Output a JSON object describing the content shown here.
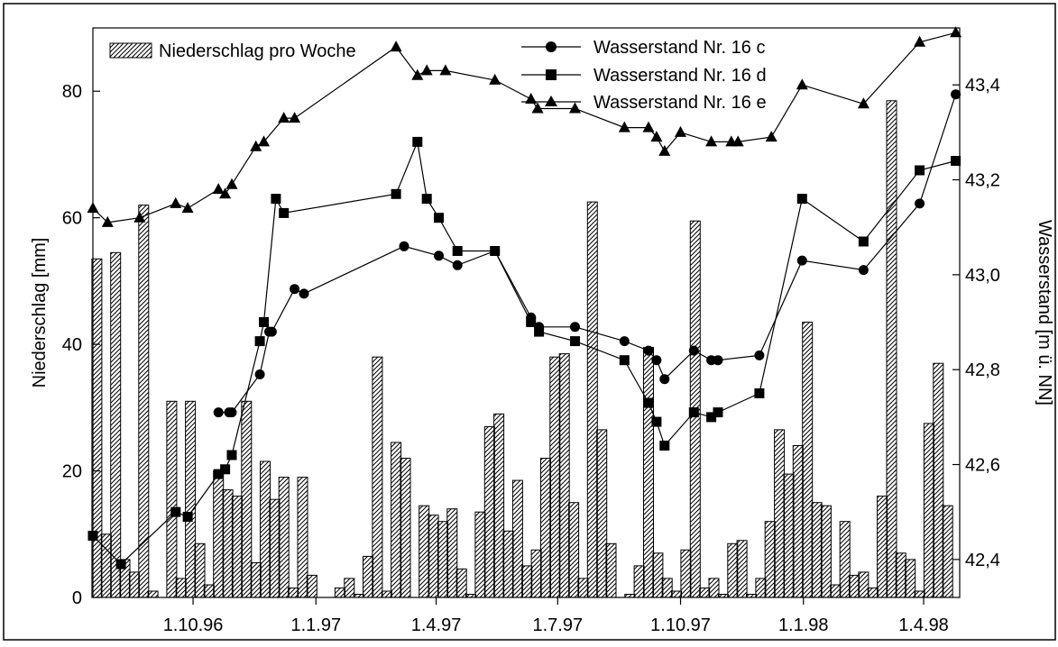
{
  "chart_data": {
    "type": "bar+line",
    "title": "",
    "ylabel_left": "Niederschlag [mm]",
    "ylabel_right": "Wasserstand [m ü. NN]",
    "ylim_left": [
      0,
      90
    ],
    "ylim_right": [
      42.32,
      43.52
    ],
    "y_ticks_left": [
      0,
      20,
      40,
      60,
      80
    ],
    "y_tick_labels_left": [
      "0",
      "20",
      "40",
      "60",
      "80"
    ],
    "y_ticks_right": [
      42.4,
      42.6,
      42.8,
      43.0,
      43.2,
      43.4
    ],
    "y_tick_labels_right": [
      "42,4",
      "42,6",
      "42,8",
      "43,0",
      "43,2",
      "43,4"
    ],
    "x_range": [
      "1996-07-18",
      "1998-04-28"
    ],
    "x_ticks": [
      "1996-10-01",
      "1997-01-01",
      "1997-04-01",
      "1997-07-01",
      "1997-10-01",
      "1998-01-01",
      "1998-04-01"
    ],
    "x_tick_labels": [
      "1.10.96",
      "1.1.97",
      "1.4.97",
      "1.7.97",
      "1.10.97",
      "1.1.98",
      "1.4.98"
    ],
    "grid": false,
    "legend": {
      "bar_label": "Niederschlag pro Woche",
      "line_labels": [
        "Wasserstand Nr. 16 c",
        "Wasserstand Nr. 16 d",
        "Wasserstand Nr. 16 e"
      ]
    },
    "bars": {
      "name": "Niederschlag pro Woche",
      "dates": [
        "1996-07-21",
        "1996-07-28",
        "1996-08-04",
        "1996-08-11",
        "1996-08-18",
        "1996-08-25",
        "1996-09-01",
        "1996-09-08",
        "1996-09-15",
        "1996-09-22",
        "1996-09-29",
        "1996-10-06",
        "1996-10-13",
        "1996-10-20",
        "1996-10-27",
        "1996-11-03",
        "1996-11-10",
        "1996-11-17",
        "1996-11-24",
        "1996-12-01",
        "1996-12-08",
        "1996-12-15",
        "1996-12-22",
        "1996-12-29",
        "1997-01-05",
        "1997-01-12",
        "1997-01-19",
        "1997-01-26",
        "1997-02-02",
        "1997-02-09",
        "1997-02-16",
        "1997-02-23",
        "1997-03-02",
        "1997-03-09",
        "1997-03-16",
        "1997-03-23",
        "1997-03-30",
        "1997-04-06",
        "1997-04-13",
        "1997-04-20",
        "1997-04-27",
        "1997-05-04",
        "1997-05-11",
        "1997-05-18",
        "1997-05-25",
        "1997-06-01",
        "1997-06-08",
        "1997-06-15",
        "1997-06-22",
        "1997-06-29",
        "1997-07-06",
        "1997-07-13",
        "1997-07-20",
        "1997-07-27",
        "1997-08-03",
        "1997-08-10",
        "1997-08-17",
        "1997-08-24",
        "1997-08-31",
        "1997-09-07",
        "1997-09-14",
        "1997-09-21",
        "1997-09-28",
        "1997-10-05",
        "1997-10-12",
        "1997-10-19",
        "1997-10-26",
        "1997-11-02",
        "1997-11-09",
        "1997-11-16",
        "1997-11-23",
        "1997-11-30",
        "1997-12-07",
        "1997-12-14",
        "1997-12-21",
        "1997-12-28",
        "1998-01-04",
        "1998-01-11",
        "1998-01-18",
        "1998-01-25",
        "1998-02-01",
        "1998-02-08",
        "1998-02-15",
        "1998-02-22",
        "1998-03-01",
        "1998-03-08",
        "1998-03-15",
        "1998-03-22",
        "1998-03-29",
        "1998-04-05",
        "1998-04-12",
        "1998-04-19"
      ],
      "values": [
        53.5,
        10,
        54.5,
        6,
        4,
        62,
        1,
        0,
        31,
        3,
        31,
        8.5,
        2,
        20,
        17,
        16,
        31,
        5.5,
        21.5,
        15.5,
        19,
        1.5,
        19,
        3.5,
        0,
        0,
        1.5,
        3,
        0.5,
        6.5,
        38,
        1,
        24.5,
        22,
        0,
        14.5,
        13,
        12,
        14,
        4.5,
        0.5,
        13.5,
        27,
        29,
        10.5,
        18.5,
        5,
        7.5,
        22,
        38,
        38.5,
        15,
        3,
        62.5,
        26.5,
        8.5,
        0,
        0.5,
        5,
        39.5,
        7,
        3,
        1,
        7.5,
        59.5,
        1.5,
        3,
        0.5,
        8.5,
        9,
        0.5,
        3,
        12,
        26.5,
        19.5,
        24,
        43.5,
        15,
        14.5,
        2,
        12,
        3.5,
        4,
        1.5,
        16,
        78.5,
        7,
        6,
        1,
        27.5,
        37,
        14.5
      ]
    },
    "series": [
      {
        "name": "Wasserstand Nr. 16 c",
        "marker": "circle",
        "dates": [
          "1996-10-20",
          "1996-10-28",
          "1996-10-30",
          "1996-11-20",
          "1996-11-27",
          "1996-11-29",
          "1996-12-16",
          "1996-12-23",
          "1997-03-08",
          "1997-04-03",
          "1997-04-17",
          "1997-05-15",
          "1997-06-11",
          "1997-06-17",
          "1997-07-14",
          "1997-08-20",
          "1997-09-07",
          "1997-09-13",
          "1997-09-19",
          "1997-10-11",
          "1997-10-24",
          "1997-10-29",
          "1997-11-29",
          "1997-12-31",
          "1998-02-15",
          "1998-03-29",
          "1998-04-25"
        ],
        "values": [
          42.71,
          42.71,
          42.71,
          42.79,
          42.88,
          42.88,
          42.97,
          42.96,
          43.06,
          43.04,
          43.02,
          43.05,
          42.91,
          42.89,
          42.89,
          42.86,
          42.84,
          42.82,
          42.78,
          42.84,
          42.82,
          42.82,
          42.83,
          43.03,
          43.01,
          43.15,
          43.38
        ]
      },
      {
        "name": "Wasserstand Nr. 16 d",
        "marker": "square",
        "dates": [
          "1996-07-18",
          "1996-08-08",
          "1996-09-18",
          "1996-09-27",
          "1996-10-20",
          "1996-10-25",
          "1996-10-30",
          "1996-11-20",
          "1996-11-23",
          "1996-12-02",
          "1996-12-08",
          "1997-03-02",
          "1997-03-18",
          "1997-03-25",
          "1997-04-03",
          "1997-04-17",
          "1997-05-15",
          "1997-06-11",
          "1997-06-17",
          "1997-07-14",
          "1997-08-20",
          "1997-09-07",
          "1997-09-13",
          "1997-09-19",
          "1997-10-11",
          "1997-10-24",
          "1997-10-29",
          "1997-11-29",
          "1997-12-31",
          "1998-02-15",
          "1998-03-29",
          "1998-04-25"
        ],
        "values": [
          42.45,
          42.39,
          42.5,
          42.49,
          42.58,
          42.59,
          42.62,
          42.86,
          42.9,
          43.16,
          43.13,
          43.17,
          43.28,
          43.16,
          43.12,
          43.05,
          43.05,
          42.9,
          42.88,
          42.86,
          42.82,
          42.73,
          42.69,
          42.64,
          42.71,
          42.7,
          42.71,
          42.75,
          43.16,
          43.07,
          43.22,
          43.24
        ]
      },
      {
        "name": "Wasserstand Nr. 16 e",
        "marker": "triangle",
        "dates": [
          "1996-07-18",
          "1996-07-29",
          "1996-08-22",
          "1996-09-18",
          "1996-09-27",
          "1996-10-20",
          "1996-10-25",
          "1996-10-30",
          "1996-11-17",
          "1996-11-23",
          "1996-12-08",
          "1996-12-16",
          "1997-03-02",
          "1997-03-18",
          "1997-03-25",
          "1997-04-08",
          "1997-05-15",
          "1997-06-11",
          "1997-06-16",
          "1997-07-14",
          "1997-08-20",
          "1997-09-07",
          "1997-09-13",
          "1997-09-19",
          "1997-10-01",
          "1997-10-24",
          "1997-11-08",
          "1997-11-13",
          "1997-12-08",
          "1997-12-31",
          "1998-02-15",
          "1998-03-29",
          "1998-04-25"
        ],
        "values": [
          43.14,
          43.11,
          43.12,
          43.15,
          43.14,
          43.18,
          43.17,
          43.19,
          43.27,
          43.28,
          43.33,
          43.33,
          43.48,
          43.42,
          43.43,
          43.43,
          43.41,
          43.37,
          43.35,
          43.35,
          43.31,
          43.31,
          43.29,
          43.26,
          43.3,
          43.28,
          43.28,
          43.28,
          43.29,
          43.4,
          43.36,
          43.49,
          43.51
        ]
      }
    ]
  }
}
